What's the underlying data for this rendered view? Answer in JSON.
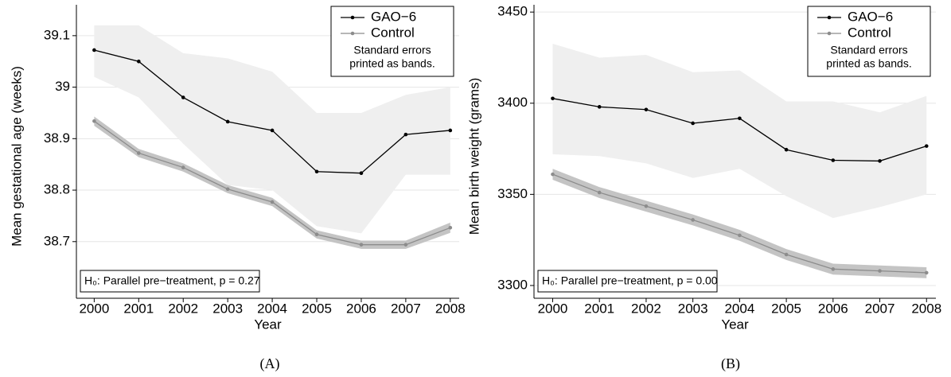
{
  "chart_data": [
    {
      "type": "line",
      "caption": "(A)",
      "x_label": "Year",
      "y_label": "Mean gestational age (weeks)",
      "x": [
        2000,
        2001,
        2002,
        2003,
        2004,
        2005,
        2006,
        2007,
        2008
      ],
      "xlim": [
        1999.6,
        2008.2
      ],
      "xticks": [
        2000,
        2001,
        2002,
        2003,
        2004,
        2005,
        2006,
        2007,
        2008
      ],
      "ylim": [
        38.59,
        39.16
      ],
      "yticks": [
        38.7,
        38.8,
        38.9,
        {
          "value": 39,
          "label": "39"
        },
        39.1
      ],
      "grid": true,
      "legend_position": "upper right",
      "legend_note": [
        "Standard errors",
        "printed as bands."
      ],
      "annotation": "H₀: Parallel pre−treatment, p = 0.27",
      "series": [
        {
          "name": "GAO−6",
          "color": "#000000",
          "band_color": "#efefef",
          "values": [
            39.072,
            39.05,
            38.98,
            38.933,
            38.916,
            38.836,
            38.833,
            38.908,
            38.916
          ],
          "upper": [
            39.12,
            39.12,
            39.066,
            39.056,
            39.03,
            38.95,
            38.95,
            38.985,
            39.0
          ],
          "lower": [
            39.02,
            38.98,
            38.89,
            38.81,
            38.8,
            38.73,
            38.716,
            38.83,
            38.83
          ]
        },
        {
          "name": "Control",
          "color": "#8c8c8c",
          "band_color": "#c4c4c4",
          "values": [
            38.934,
            38.872,
            38.844,
            38.802,
            38.777,
            38.714,
            38.694,
            38.694,
            38.727
          ],
          "upper": [
            38.943,
            38.88,
            38.852,
            38.81,
            38.785,
            38.722,
            38.702,
            38.702,
            38.737
          ],
          "lower": [
            38.925,
            38.864,
            38.836,
            38.794,
            38.769,
            38.706,
            38.686,
            38.686,
            38.717
          ]
        }
      ]
    },
    {
      "type": "line",
      "caption": "(B)",
      "x_label": "Year",
      "y_label": "Mean birth weight (grams)",
      "x": [
        2000,
        2001,
        2002,
        2003,
        2004,
        2005,
        2006,
        2007,
        2008
      ],
      "xlim": [
        1999.6,
        2008.2
      ],
      "xticks": [
        2000,
        2001,
        2002,
        2003,
        2004,
        2005,
        2006,
        2007,
        2008
      ],
      "ylim": [
        3293,
        3454
      ],
      "yticks": [
        3300,
        3350,
        3400,
        3450
      ],
      "grid": true,
      "legend_position": "upper right",
      "legend_note": [
        "Standard errors",
        "printed as bands."
      ],
      "annotation": "H₀: Parallel pre−treatment, p = 0.00",
      "series": [
        {
          "name": "GAO−6",
          "color": "#000000",
          "band_color": "#efefef",
          "values": [
            3402.6,
            3398,
            3396.5,
            3389,
            3391.7,
            3374.5,
            3368.7,
            3368.3,
            3376.5
          ],
          "upper": [
            3432.6,
            3425,
            3426.5,
            3417,
            3418,
            3401,
            3401,
            3395,
            3404
          ],
          "lower": [
            3372,
            3371,
            3367,
            3359,
            3364,
            3349,
            3337,
            3343,
            3350
          ]
        },
        {
          "name": "Control",
          "color": "#8c8c8c",
          "band_color": "#c4c4c4",
          "values": [
            3361,
            3351,
            3343.5,
            3336,
            3327.5,
            3317,
            3309,
            3308,
            3307
          ],
          "upper": [
            3364,
            3354,
            3346.5,
            3339,
            3330.5,
            3320,
            3312,
            3311,
            3310
          ],
          "lower": [
            3358,
            3348,
            3340.5,
            3333,
            3324.5,
            3314,
            3306,
            3305,
            3304
          ]
        }
      ]
    }
  ]
}
